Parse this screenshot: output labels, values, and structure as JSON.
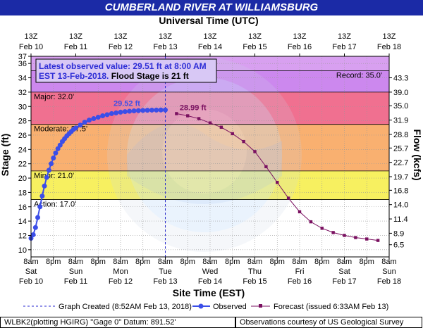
{
  "title": "CUMBERLAND RIVER AT WILLIAMSBURG",
  "chart_data": {
    "type": "line",
    "top_axis_title": "Universal Time (UTC)",
    "bottom_axis_title": "Site Time (EST)",
    "ylabel_left": "Stage (ft)",
    "ylabel_right": "Flow (kcfs)",
    "ylim": [
      9,
      37
    ],
    "y_ticks": [
      10,
      12,
      14,
      16,
      18,
      20,
      22,
      24,
      26,
      28,
      30,
      32,
      34,
      36,
      37
    ],
    "right_ticks": [
      {
        "stage": 10.7,
        "label": "6.5"
      },
      {
        "stage": 12.3,
        "label": "8.9"
      },
      {
        "stage": 14.3,
        "label": "11.4"
      },
      {
        "stage": 16.3,
        "label": "14.0"
      },
      {
        "stage": 18.3,
        "label": "16.8"
      },
      {
        "stage": 20.2,
        "label": "19.7"
      },
      {
        "stage": 22.2,
        "label": "22.7"
      },
      {
        "stage": 24.2,
        "label": "25.7"
      },
      {
        "stage": 26.1,
        "label": "28.8"
      },
      {
        "stage": 28.1,
        "label": "31.9"
      },
      {
        "stage": 30.1,
        "label": "35.0"
      },
      {
        "stage": 32.0,
        "label": "39.0"
      },
      {
        "stage": 34.0,
        "label": "43.3"
      }
    ],
    "x_days_top": [
      {
        "day": 0,
        "line1": "13Z",
        "line2": "Feb 10"
      },
      {
        "day": 1,
        "line1": "13Z",
        "line2": "Feb 11"
      },
      {
        "day": 2,
        "line1": "13Z",
        "line2": "Feb 12"
      },
      {
        "day": 3,
        "line1": "13Z",
        "line2": "Feb 13"
      },
      {
        "day": 4,
        "line1": "13Z",
        "line2": "Feb 14"
      },
      {
        "day": 5,
        "line1": "13Z",
        "line2": "Feb 15"
      },
      {
        "day": 6,
        "line1": "13Z",
        "line2": "Feb 16"
      },
      {
        "day": 7,
        "line1": "13Z",
        "line2": "Feb 17"
      },
      {
        "day": 8,
        "line1": "13Z",
        "line2": "Feb 18"
      }
    ],
    "x_half_days_bottom": [
      {
        "day": 0,
        "line1": "8am",
        "line2": "Sat",
        "line3": "Feb 10"
      },
      {
        "day": 0.5,
        "line1": "8pm"
      },
      {
        "day": 1,
        "line1": "8am",
        "line2": "Sun",
        "line3": "Feb 11"
      },
      {
        "day": 1.5,
        "line1": "8pm"
      },
      {
        "day": 2,
        "line1": "8am",
        "line2": "Mon",
        "line3": "Feb 12"
      },
      {
        "day": 2.5,
        "line1": "8pm"
      },
      {
        "day": 3,
        "line1": "8am",
        "line2": "Tue",
        "line3": "Feb 13"
      },
      {
        "day": 3.5,
        "line1": "8pm"
      },
      {
        "day": 4,
        "line1": "8am",
        "line2": "Wed",
        "line3": "Feb 14"
      },
      {
        "day": 4.5,
        "line1": "8pm"
      },
      {
        "day": 5,
        "line1": "8am",
        "line2": "Thu",
        "line3": "Feb 15"
      },
      {
        "day": 5.5,
        "line1": "8pm"
      },
      {
        "day": 6,
        "line1": "8am",
        "line2": "Fri",
        "line3": "Feb 16"
      },
      {
        "day": 6.5,
        "line1": "8pm"
      },
      {
        "day": 7,
        "line1": "8am",
        "line2": "Sat",
        "line3": "Feb 17"
      },
      {
        "day": 7.5,
        "line1": "8pm"
      },
      {
        "day": 8,
        "line1": "8am",
        "line2": "Sun",
        "line3": "Feb 18"
      }
    ],
    "xlim": [
      0,
      8
    ],
    "flood_bands": [
      {
        "name": "Record",
        "from": 35,
        "to": 37,
        "color": "#d8a0f0"
      },
      {
        "name": "Record",
        "from": 32,
        "to": 35,
        "color": "#cc88ee"
      },
      {
        "name": "Major",
        "from": 27.5,
        "to": 32,
        "color": "#f07090"
      },
      {
        "name": "Moderate",
        "from": 21,
        "to": 27.5,
        "color": "#f9b070"
      },
      {
        "name": "Minor",
        "from": 17,
        "to": 21,
        "color": "#f7f060"
      },
      {
        "name": "Action",
        "from": 9,
        "to": 17,
        "color": "#ffffff"
      }
    ],
    "stage_labels": [
      {
        "text": "Record: 35.0'",
        "value": 35.0,
        "align": "right"
      },
      {
        "text": "Major: 32.0'",
        "value": 32.0,
        "align": "left"
      },
      {
        "text": "Moderate: 27.5'",
        "value": 27.5,
        "align": "left"
      },
      {
        "text": "Minor: 21.0'",
        "value": 21.0,
        "align": "left"
      },
      {
        "text": "Action: 17.0'",
        "value": 17.0,
        "align": "left"
      }
    ],
    "series": [
      {
        "name": "Observed",
        "color": "#3b4ee8",
        "x": [
          0.0,
          0.05,
          0.1,
          0.15,
          0.2,
          0.25,
          0.3,
          0.35,
          0.4,
          0.45,
          0.5,
          0.55,
          0.6,
          0.65,
          0.7,
          0.75,
          0.8,
          0.85,
          0.9,
          0.95,
          1.0,
          1.1,
          1.2,
          1.3,
          1.4,
          1.5,
          1.6,
          1.7,
          1.8,
          1.9,
          2.0,
          2.1,
          2.2,
          2.3,
          2.4,
          2.5,
          2.6,
          2.7,
          2.8,
          2.9,
          3.0
        ],
        "y": [
          11.6,
          12.1,
          13.1,
          14.5,
          16.0,
          17.5,
          18.9,
          20.1,
          21.1,
          22.0,
          22.8,
          23.5,
          24.1,
          24.6,
          25.1,
          25.5,
          25.9,
          26.2,
          26.5,
          26.8,
          27.0,
          27.4,
          27.8,
          28.1,
          28.3,
          28.5,
          28.7,
          28.85,
          29.0,
          29.1,
          29.2,
          29.28,
          29.34,
          29.38,
          29.42,
          29.45,
          29.47,
          29.49,
          29.5,
          29.51,
          29.51
        ]
      },
      {
        "name": "Forecast (issued 6:33AM Feb 13)",
        "color": "#7a1060",
        "x": [
          3.25,
          3.5,
          3.75,
          4.0,
          4.25,
          4.5,
          4.75,
          5.0,
          5.25,
          5.5,
          5.75,
          6.0,
          6.25,
          6.5,
          6.75,
          7.0,
          7.25,
          7.5,
          7.75
        ],
        "y": [
          29.0,
          28.7,
          28.3,
          27.7,
          27.1,
          26.2,
          25.1,
          23.7,
          21.6,
          19.4,
          17.2,
          15.3,
          13.9,
          13.0,
          12.4,
          12.0,
          11.7,
          11.5,
          11.3
        ]
      }
    ],
    "annotations": [
      {
        "text": "29.52 ft",
        "x": 2.0,
        "y": 29.6,
        "color": "#3b4ee8"
      },
      {
        "text": "28.99 ft",
        "x": 3.32,
        "y": 29.0,
        "color": "#7a1060"
      }
    ],
    "graph_created_day": 3.0,
    "legend": {
      "graph_created": "Graph Created (8:52AM Feb 13, 2018)",
      "observed": "Observed",
      "forecast": "Forecast (issued 6:33AM Feb 13)"
    },
    "info_box": {
      "line1": "Latest observed value: 29.51 ft at 8:00 AM",
      "line2a": "EST 13-Feb-2018.",
      "line2b": " Flood Stage is 21 ft"
    }
  },
  "footer": {
    "left": "WLBK2(plotting HGIRG) \"Gage 0\" Datum:  891.52'",
    "right": "Observations courtesy of US Geological Survey"
  }
}
